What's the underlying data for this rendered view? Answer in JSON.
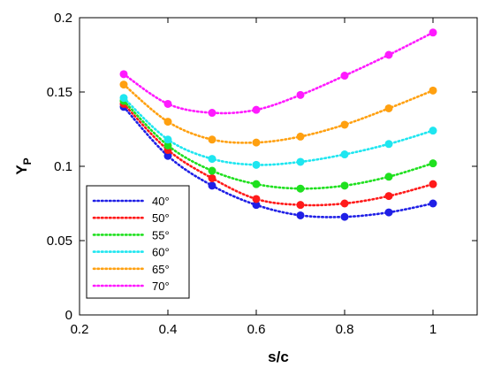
{
  "chart_data": {
    "type": "line",
    "xlabel": "s/c",
    "ylabel_main": "Y",
    "ylabel_sub": "P",
    "xlim": [
      0.2,
      1.1
    ],
    "ylim": [
      0,
      0.2
    ],
    "xticks": [
      0.2,
      0.4,
      0.6,
      0.8,
      1
    ],
    "xtick_labels": [
      "0.2",
      "0.4",
      "0.6",
      "0.8",
      "1"
    ],
    "yticks": [
      0,
      0.05,
      0.1,
      0.15,
      0.2
    ],
    "ytick_labels": [
      "0",
      "0.05",
      "0.1",
      "0.15",
      "0.2"
    ],
    "grid": false,
    "legend_position": "bottom-left",
    "x": [
      0.3,
      0.4,
      0.5,
      0.6,
      0.7,
      0.8,
      0.9,
      1.0
    ],
    "series": [
      {
        "name": "40°",
        "color": "#1f1fe6",
        "values": [
          0.14,
          0.107,
          0.087,
          0.074,
          0.067,
          0.066,
          0.069,
          0.075
        ]
      },
      {
        "name": "50°",
        "color": "#ff1a1a",
        "values": [
          0.142,
          0.111,
          0.092,
          0.078,
          0.074,
          0.075,
          0.08,
          0.088
        ]
      },
      {
        "name": "55°",
        "color": "#1fe01f",
        "values": [
          0.144,
          0.114,
          0.097,
          0.088,
          0.085,
          0.087,
          0.093,
          0.102
        ]
      },
      {
        "name": "60°",
        "color": "#1ee6f0",
        "values": [
          0.146,
          0.118,
          0.105,
          0.101,
          0.103,
          0.108,
          0.115,
          0.124
        ]
      },
      {
        "name": "65°",
        "color": "#ffa010",
        "values": [
          0.155,
          0.13,
          0.118,
          0.116,
          0.12,
          0.128,
          0.139,
          0.151
        ]
      },
      {
        "name": "70°",
        "color": "#ff1aff",
        "values": [
          0.162,
          0.142,
          0.136,
          0.138,
          0.148,
          0.161,
          0.175,
          0.19
        ]
      }
    ]
  }
}
